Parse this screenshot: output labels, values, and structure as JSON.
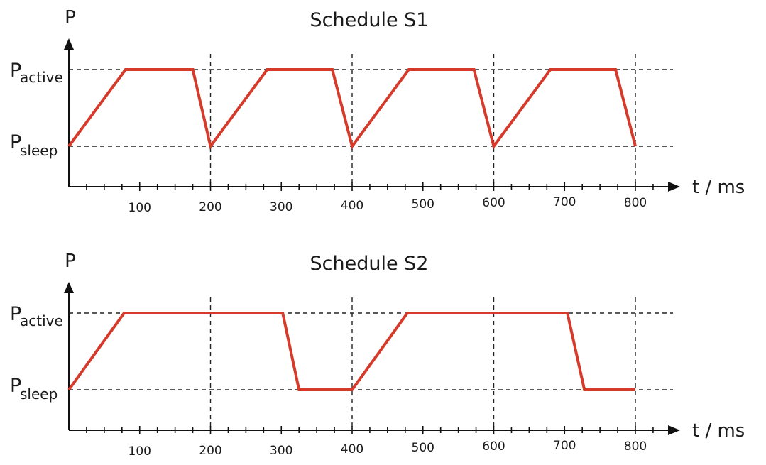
{
  "chart_data": [
    {
      "type": "line",
      "title": "Schedule S1",
      "ylabel": "P",
      "xlabel": "t / ms",
      "xlim": [
        0,
        800
      ],
      "x_ticks": [
        100,
        200,
        300,
        400,
        500,
        600,
        700,
        800
      ],
      "y_levels": [
        {
          "main": "P",
          "sub": "active"
        },
        {
          "main": "P",
          "sub": "sleep"
        }
      ],
      "series": [
        {
          "color": "#d63a2b",
          "points": [
            [
              0,
              "sleep"
            ],
            [
              80,
              "active"
            ],
            [
              175,
              "active"
            ],
            [
              200,
              "sleep"
            ],
            [
              280,
              "active"
            ],
            [
              372,
              "active"
            ],
            [
              400,
              "sleep"
            ],
            [
              480,
              "active"
            ],
            [
              572,
              "active"
            ],
            [
              600,
              "sleep"
            ],
            [
              680,
              "active"
            ],
            [
              772,
              "active"
            ],
            [
              800,
              "sleep"
            ]
          ]
        }
      ]
    },
    {
      "type": "line",
      "title": "Schedule S2",
      "ylabel": "P",
      "xlabel": "t / ms",
      "xlim": [
        0,
        800
      ],
      "x_ticks": [
        100,
        200,
        300,
        400,
        500,
        600,
        700,
        800
      ],
      "y_levels": [
        {
          "main": "P",
          "sub": "active"
        },
        {
          "main": "P",
          "sub": "sleep"
        }
      ],
      "series": [
        {
          "color": "#d63a2b",
          "points": [
            [
              0,
              "sleep"
            ],
            [
              78,
              "active"
            ],
            [
              302,
              "active"
            ],
            [
              325,
              "sleep"
            ],
            [
              400,
              "sleep"
            ],
            [
              478,
              "active"
            ],
            [
              704,
              "active"
            ],
            [
              728,
              "sleep"
            ],
            [
              800,
              "sleep"
            ]
          ]
        }
      ]
    }
  ]
}
